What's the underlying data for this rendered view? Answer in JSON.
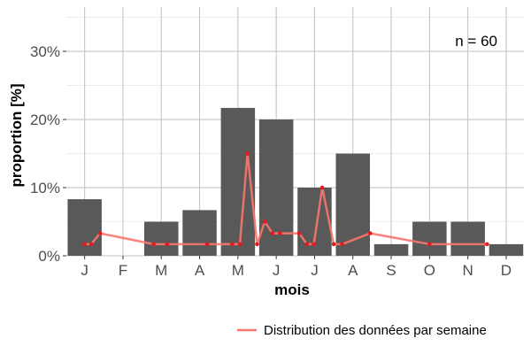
{
  "chart_data": {
    "type": "bar",
    "xlabel": "mois",
    "ylabel": "proportion [%]",
    "categories": [
      "J",
      "F",
      "M",
      "A",
      "M",
      "J",
      "J",
      "A",
      "S",
      "O",
      "N",
      "D"
    ],
    "values": [
      8.3,
      0,
      5.0,
      6.7,
      21.7,
      20.0,
      10.0,
      15.0,
      1.7,
      5.0,
      5.0,
      1.7
    ],
    "y_ticks": [
      0,
      10,
      20,
      30
    ],
    "y_tick_labels": [
      "0%",
      "10%",
      "20%",
      "30%"
    ],
    "ylim": [
      0,
      36.5
    ],
    "grid": true,
    "annotation": "n = 60",
    "bar_color": "#595959",
    "line_series": {
      "name": "Distribution des données par semaine",
      "color": "#f8766d",
      "point_color": "#e41a1c",
      "x": [
        0.0,
        0.17,
        0.4,
        1.8,
        2.15,
        3.2,
        3.85,
        4.05,
        4.25,
        4.5,
        4.7,
        4.9,
        5.1,
        5.6,
        5.8,
        5.98,
        6.2,
        6.5,
        6.72,
        7.45,
        9.0,
        10.5
      ],
      "y": [
        1.7,
        1.7,
        3.3,
        1.7,
        1.7,
        1.7,
        1.7,
        1.7,
        15.0,
        1.7,
        5.0,
        3.3,
        3.3,
        3.3,
        1.7,
        1.7,
        10.0,
        1.7,
        1.7,
        3.3,
        1.7,
        1.7
      ]
    },
    "legend": {
      "label": "Distribution des données par semaine",
      "position": "bottom-right"
    }
  }
}
